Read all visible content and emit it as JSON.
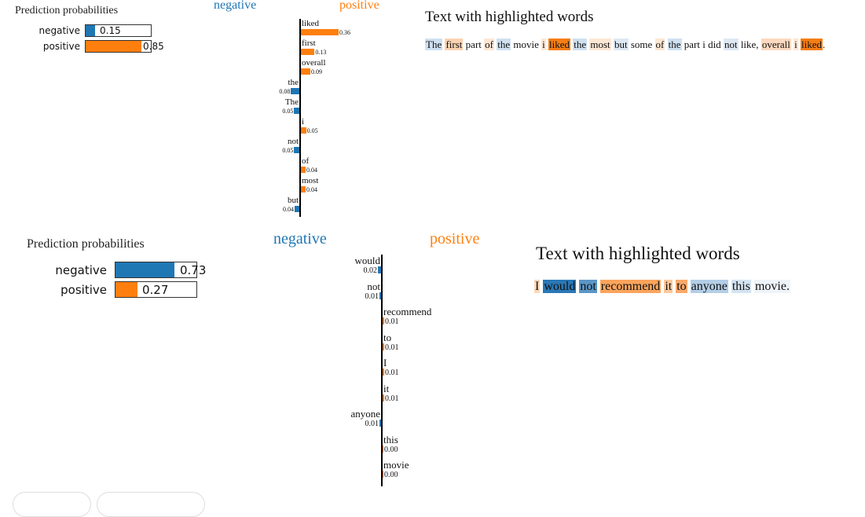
{
  "classes": [
    "negative",
    "positive"
  ],
  "colors": {
    "negative": "#1f77b4",
    "positive": "#ff7f0e"
  },
  "explanations": [
    {
      "prediction_title": "Prediction probabilities",
      "probabilities": [
        {
          "label": "negative",
          "value": 0.15,
          "text": "0.15"
        },
        {
          "label": "positive",
          "value": 0.85,
          "text": "0.85"
        }
      ],
      "header_negative": "negative",
      "header_positive": "positive",
      "features": [
        {
          "word": "liked",
          "weight": 0.36,
          "text": "0.36"
        },
        {
          "word": "first",
          "weight": 0.13,
          "text": "0.13"
        },
        {
          "word": "overall",
          "weight": 0.09,
          "text": "0.09"
        },
        {
          "word": "the",
          "weight": -0.08,
          "text": "0.08"
        },
        {
          "word": "The",
          "weight": -0.05,
          "text": "0.05"
        },
        {
          "word": "i",
          "weight": 0.05,
          "text": "0.05"
        },
        {
          "word": "not",
          "weight": -0.05,
          "text": "0.05"
        },
        {
          "word": "of",
          "weight": 0.04,
          "text": "0.04"
        },
        {
          "word": "most",
          "weight": 0.04,
          "text": "0.04"
        },
        {
          "word": "but",
          "weight": -0.04,
          "text": "0.04"
        }
      ],
      "text_title": "Text with highlighted words",
      "tokens": [
        {
          "t": "The",
          "hl": "#cfe0f0"
        },
        {
          "t": " "
        },
        {
          "t": "first",
          "hl": "#fcd2b1"
        },
        {
          "t": " part "
        },
        {
          "t": "of",
          "hl": "#fde6d3"
        },
        {
          "t": " "
        },
        {
          "t": "the",
          "hl": "#cfe0f0"
        },
        {
          "t": " movie "
        },
        {
          "t": "i",
          "hl": "#fde6d3"
        },
        {
          "t": " "
        },
        {
          "t": "liked",
          "hl": "#f57d14"
        },
        {
          "t": " "
        },
        {
          "t": "the",
          "hl": "#cfe0f0"
        },
        {
          "t": " "
        },
        {
          "t": "most",
          "hl": "#fde6d3"
        },
        {
          "t": " "
        },
        {
          "t": "but",
          "hl": "#dde8f3"
        },
        {
          "t": " some "
        },
        {
          "t": "of",
          "hl": "#fde6d3"
        },
        {
          "t": " "
        },
        {
          "t": "the",
          "hl": "#cfe0f0"
        },
        {
          "t": " part i did "
        },
        {
          "t": "not",
          "hl": "#dde8f3"
        },
        {
          "t": " like, "
        },
        {
          "t": "overall",
          "hl": "#fcd9bf"
        },
        {
          "t": " "
        },
        {
          "t": "i",
          "hl": "#fde6d3"
        },
        {
          "t": " "
        },
        {
          "t": "liked",
          "hl": "#f57d14"
        },
        {
          "t": "."
        }
      ]
    },
    {
      "prediction_title": "Prediction probabilities",
      "probabilities": [
        {
          "label": "negative",
          "value": 0.73,
          "text": "0.73"
        },
        {
          "label": "positive",
          "value": 0.27,
          "text": "0.27"
        }
      ],
      "header_negative": "negative",
      "header_positive": "positive",
      "features": [
        {
          "word": "would",
          "weight": -0.02,
          "text": "0.02"
        },
        {
          "word": "not",
          "weight": -0.01,
          "text": "0.01"
        },
        {
          "word": "recommend",
          "weight": 0.01,
          "text": "0.01"
        },
        {
          "word": "to",
          "weight": 0.01,
          "text": "0.01"
        },
        {
          "word": "I",
          "weight": 0.01,
          "text": "0.01"
        },
        {
          "word": "it",
          "weight": 0.01,
          "text": "0.01"
        },
        {
          "word": "anyone",
          "weight": -0.01,
          "text": "0.01"
        },
        {
          "word": "this",
          "weight": -0.0,
          "text": "0.00"
        },
        {
          "word": "movie",
          "weight": -0.0,
          "text": "0.00"
        }
      ],
      "text_title": "Text with highlighted words",
      "tokens": [
        {
          "t": "I",
          "hl": "#fdd9b8"
        },
        {
          "t": " "
        },
        {
          "t": "would",
          "hl": "#2a78b6"
        },
        {
          "t": " "
        },
        {
          "t": "not",
          "hl": "#5b96c6"
        },
        {
          "t": " "
        },
        {
          "t": "recommend",
          "hl": "#fba45c"
        },
        {
          "t": " "
        },
        {
          "t": "it",
          "hl": "#fdc89a"
        },
        {
          "t": " "
        },
        {
          "t": "to",
          "hl": "#fba86a"
        },
        {
          "t": " "
        },
        {
          "t": "anyone",
          "hl": "#b3cee6"
        },
        {
          "t": " "
        },
        {
          "t": "this",
          "hl": "#d4e3f1"
        },
        {
          "t": " "
        },
        {
          "t": "movie.",
          "hl": "#eef4fa"
        }
      ]
    }
  ],
  "chart_data": [
    {
      "type": "bar",
      "title": "Prediction probabilities",
      "categories": [
        "negative",
        "positive"
      ],
      "values": [
        0.15,
        0.85
      ],
      "xlim": [
        0,
        1
      ]
    },
    {
      "type": "bar",
      "categories": [
        "liked",
        "first",
        "overall",
        "the",
        "The",
        "i",
        "not",
        "of",
        "most",
        "but"
      ],
      "values": [
        0.36,
        0.13,
        0.09,
        -0.08,
        -0.05,
        0.05,
        -0.05,
        0.04,
        0.04,
        -0.04
      ]
    },
    {
      "type": "bar",
      "title": "Prediction probabilities",
      "categories": [
        "negative",
        "positive"
      ],
      "values": [
        0.73,
        0.27
      ],
      "xlim": [
        0,
        1
      ]
    },
    {
      "type": "bar",
      "categories": [
        "would",
        "not",
        "recommend",
        "to",
        "I",
        "it",
        "anyone",
        "this",
        "movie"
      ],
      "values": [
        -0.02,
        -0.01,
        0.01,
        0.01,
        0.01,
        0.01,
        -0.01,
        -0.0,
        -0.0
      ]
    }
  ]
}
